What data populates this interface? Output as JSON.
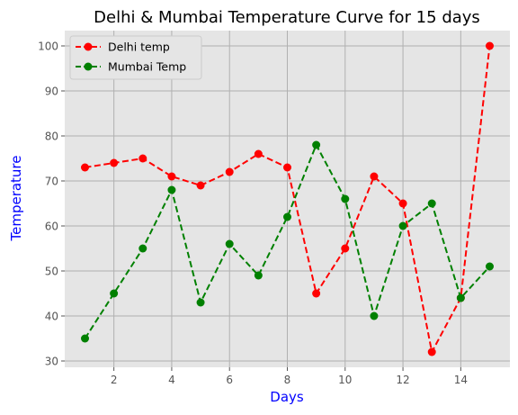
{
  "chart_data": {
    "type": "line",
    "title": "Delhi & Mumbai Temperature Curve for 15 days",
    "xlabel": "Days",
    "ylabel": "Temperature",
    "label_color": "#0000ff",
    "x": [
      1,
      2,
      3,
      4,
      5,
      6,
      7,
      8,
      9,
      10,
      11,
      12,
      13,
      14,
      15
    ],
    "xlim": [
      0.3,
      15.7
    ],
    "ylim": [
      28.6,
      103.4
    ],
    "x_ticks": [
      2,
      4,
      6,
      8,
      10,
      12,
      14
    ],
    "y_ticks": [
      30,
      40,
      50,
      60,
      70,
      80,
      90,
      100
    ],
    "grid": true,
    "style": "ggplot",
    "legend_position": "top-left",
    "series": [
      {
        "name": "Delhi temp",
        "color": "#ff0000",
        "linestyle": "dashed",
        "marker": "circle",
        "values": [
          73,
          74,
          75,
          71,
          69,
          72,
          76,
          73,
          45,
          55,
          71,
          65,
          32,
          44,
          100
        ]
      },
      {
        "name": "Mumbai Temp",
        "color": "#008000",
        "linestyle": "dashed",
        "marker": "circle",
        "values": [
          35,
          45,
          55,
          68,
          43,
          56,
          49,
          62,
          78,
          66,
          40,
          60,
          65,
          44,
          51
        ]
      }
    ]
  }
}
